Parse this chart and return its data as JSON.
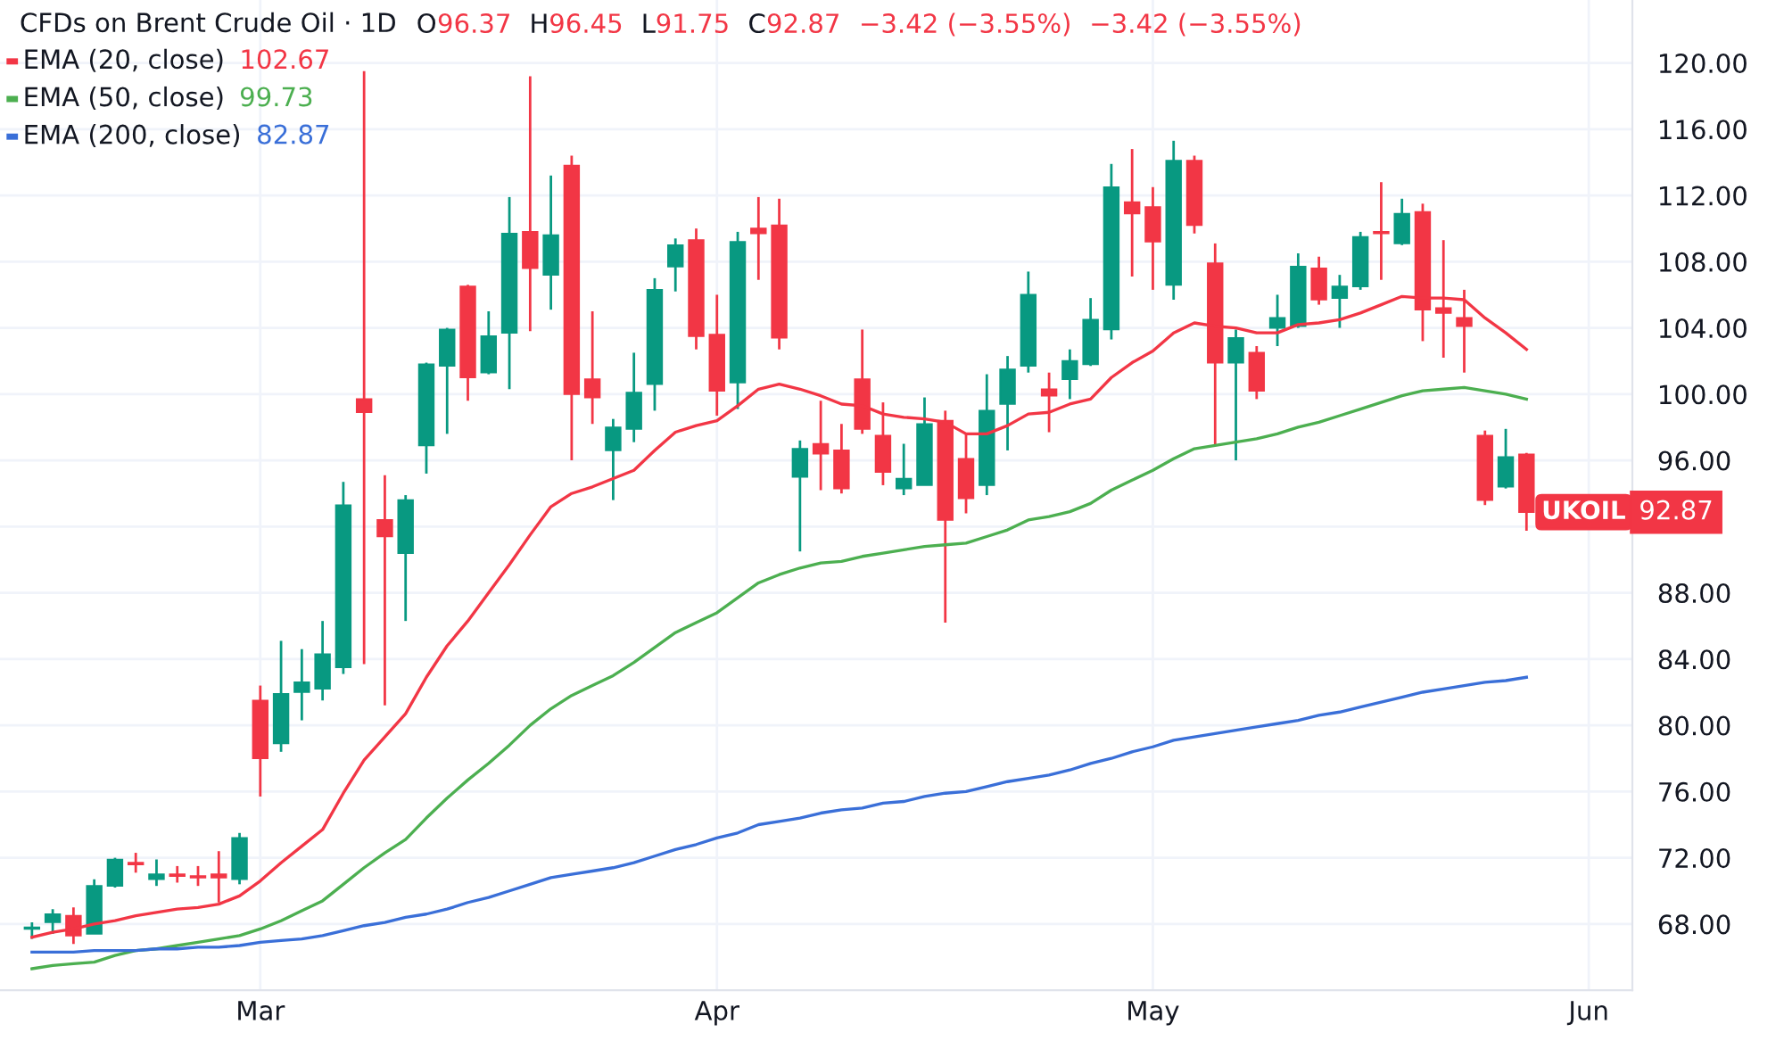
{
  "chart_data": {
    "type": "candlestick",
    "title": "CFDs on Brent Crude Oil · 1D",
    "annotations": [
      "O96.37",
      "H96.45",
      "L91.75",
      "C92.87",
      "−3.42 (−3.55%)",
      "−3.42 (−3.55%)",
      "102.67",
      "99.73",
      "82.87",
      "UKOIL",
      "92.87"
    ],
    "categories": [
      null,
      null,
      null,
      null,
      null,
      null,
      null,
      null,
      null,
      null,
      null,
      "Mar",
      null,
      null,
      null,
      null,
      null,
      null,
      null,
      null,
      null,
      null,
      null,
      null,
      null,
      null,
      null,
      null,
      null,
      null,
      null,
      null,
      null,
      "Apr",
      null,
      null,
      null,
      null,
      null,
      null,
      null,
      null,
      null,
      null,
      null,
      null,
      null,
      null,
      null,
      null,
      null,
      null,
      null,
      null,
      "May",
      null,
      null,
      null,
      null,
      null,
      null,
      null,
      null,
      null,
      null,
      null,
      null,
      null,
      null,
      null,
      null,
      null,
      null,
      null,
      null,
      "Jun"
    ],
    "ohlc": [
      [
        67.7,
        68.1,
        67.1,
        67.8
      ],
      [
        68.1,
        68.9,
        67.4,
        68.6
      ],
      [
        68.5,
        69.0,
        66.8,
        67.3
      ],
      [
        67.4,
        70.7,
        67.4,
        70.3
      ],
      [
        70.3,
        72.0,
        70.2,
        71.9
      ],
      [
        71.7,
        72.3,
        71.1,
        71.6
      ],
      [
        70.7,
        71.9,
        70.3,
        71.0
      ],
      [
        71.0,
        71.5,
        70.5,
        70.9
      ],
      [
        70.9,
        71.5,
        70.3,
        70.8
      ],
      [
        71.0,
        72.4,
        69.3,
        70.8
      ],
      [
        70.7,
        73.5,
        70.4,
        73.2
      ],
      [
        81.5,
        82.4,
        75.7,
        78.0
      ],
      [
        78.9,
        85.1,
        78.4,
        81.9
      ],
      [
        82.0,
        84.6,
        80.3,
        82.6
      ],
      [
        82.2,
        86.3,
        81.5,
        84.3
      ],
      [
        83.5,
        94.7,
        83.1,
        93.3
      ],
      [
        99.7,
        119.5,
        83.7,
        98.9
      ],
      [
        92.4,
        95.1,
        81.2,
        91.4
      ],
      [
        90.4,
        93.9,
        86.3,
        93.6
      ],
      [
        96.9,
        101.9,
        95.2,
        101.8
      ],
      [
        101.7,
        104.0,
        97.6,
        103.9
      ],
      [
        106.5,
        106.6,
        99.6,
        101.0
      ],
      [
        101.3,
        105.0,
        101.2,
        103.5
      ],
      [
        103.7,
        111.9,
        100.3,
        109.7
      ],
      [
        109.8,
        119.2,
        103.8,
        107.6
      ],
      [
        107.2,
        113.2,
        105.1,
        109.6
      ],
      [
        113.8,
        114.4,
        96.0,
        100.0
      ],
      [
        100.9,
        105.0,
        98.2,
        99.8
      ],
      [
        96.6,
        98.5,
        93.6,
        98.0
      ],
      [
        97.9,
        102.5,
        97.1,
        100.1
      ],
      [
        100.6,
        107.0,
        99.0,
        106.3
      ],
      [
        107.7,
        109.4,
        106.2,
        109.0
      ],
      [
        109.3,
        110.0,
        102.7,
        103.5
      ],
      [
        103.6,
        106.0,
        98.7,
        100.2
      ],
      [
        100.7,
        109.8,
        99.1,
        109.2
      ],
      [
        110.0,
        111.9,
        106.9,
        109.7
      ],
      [
        110.2,
        111.8,
        102.7,
        103.4
      ],
      [
        95.0,
        97.2,
        90.5,
        96.7
      ],
      [
        97.0,
        99.6,
        94.2,
        96.4
      ],
      [
        96.6,
        98.2,
        94.0,
        94.3
      ],
      [
        100.9,
        103.9,
        97.6,
        97.9
      ],
      [
        97.5,
        99.5,
        94.5,
        95.3
      ],
      [
        94.3,
        97.0,
        93.9,
        94.9
      ],
      [
        94.5,
        99.8,
        94.5,
        98.2
      ],
      [
        98.4,
        99.0,
        86.2,
        92.4
      ],
      [
        96.1,
        97.6,
        92.8,
        93.7
      ],
      [
        94.5,
        101.2,
        93.9,
        99.0
      ],
      [
        99.4,
        102.3,
        96.6,
        101.5
      ],
      [
        101.7,
        107.4,
        101.3,
        106.0
      ],
      [
        100.3,
        101.3,
        97.7,
        99.9
      ],
      [
        100.9,
        102.7,
        99.7,
        102.0
      ],
      [
        101.8,
        105.8,
        101.7,
        104.5
      ],
      [
        103.9,
        113.9,
        103.3,
        112.5
      ],
      [
        111.6,
        114.8,
        107.1,
        110.9
      ],
      [
        111.3,
        112.5,
        106.3,
        109.2
      ],
      [
        106.6,
        115.3,
        105.7,
        114.1
      ],
      [
        114.1,
        114.4,
        109.7,
        110.2
      ],
      [
        107.9,
        109.1,
        96.9,
        101.9
      ],
      [
        101.9,
        103.9,
        96.0,
        103.4
      ],
      [
        102.5,
        102.9,
        99.7,
        100.2
      ],
      [
        104.0,
        106.0,
        102.9,
        104.6
      ],
      [
        104.1,
        108.5,
        104.0,
        107.7
      ],
      [
        107.6,
        108.3,
        105.4,
        105.7
      ],
      [
        105.8,
        107.2,
        104.0,
        106.5
      ],
      [
        106.5,
        109.8,
        106.3,
        109.5
      ],
      [
        109.8,
        112.8,
        106.9,
        109.7
      ],
      [
        109.1,
        111.8,
        109.0,
        110.9
      ],
      [
        111.0,
        111.5,
        103.2,
        105.1
      ],
      [
        105.2,
        109.3,
        102.2,
        104.9
      ],
      [
        104.6,
        106.3,
        101.3,
        104.1
      ],
      [
        97.5,
        97.8,
        93.3,
        93.6
      ],
      [
        94.4,
        97.9,
        94.3,
        96.2
      ],
      [
        96.37,
        96.45,
        91.75,
        92.87
      ],
      null,
      null,
      null
    ],
    "series": [
      {
        "name": "EMA (20, close)",
        "type": "line",
        "color": "#f23645",
        "values": [
          67.2,
          67.5,
          67.7,
          68.0,
          68.2,
          68.5,
          68.7,
          68.9,
          69.0,
          69.2,
          69.7,
          70.6,
          71.7,
          72.7,
          73.7,
          75.9,
          77.9,
          79.3,
          80.7,
          82.9,
          84.8,
          86.3,
          88.0,
          89.7,
          91.5,
          93.2,
          94.0,
          94.4,
          94.9,
          95.4,
          96.6,
          97.7,
          98.1,
          98.4,
          99.3,
          100.3,
          100.6,
          100.3,
          99.9,
          99.4,
          99.3,
          98.8,
          98.6,
          98.5,
          98.3,
          97.6,
          97.6,
          98.1,
          98.8,
          98.9,
          99.4,
          99.7,
          101.0,
          101.9,
          102.6,
          103.7,
          104.3,
          104.1,
          104.0,
          103.7,
          103.7,
          104.2,
          104.3,
          104.5,
          104.9,
          105.4,
          105.9,
          105.8,
          105.8,
          105.7,
          104.6,
          103.7,
          102.7,
          null,
          null,
          null
        ]
      },
      {
        "name": "EMA (50, close)",
        "type": "line",
        "color": "#4caf50",
        "values": [
          65.3,
          65.5,
          65.6,
          65.7,
          66.1,
          66.4,
          66.5,
          66.7,
          66.9,
          67.1,
          67.3,
          67.7,
          68.2,
          68.8,
          69.4,
          70.4,
          71.4,
          72.3,
          73.1,
          74.4,
          75.6,
          76.7,
          77.7,
          78.8,
          80.0,
          81.0,
          81.8,
          82.4,
          83.0,
          83.8,
          84.7,
          85.6,
          86.2,
          86.8,
          87.7,
          88.6,
          89.1,
          89.5,
          89.8,
          89.9,
          90.2,
          90.4,
          90.6,
          90.8,
          90.9,
          91.0,
          91.4,
          91.8,
          92.4,
          92.6,
          92.9,
          93.4,
          94.2,
          94.8,
          95.4,
          96.1,
          96.7,
          96.9,
          97.1,
          97.3,
          97.6,
          98.0,
          98.3,
          98.7,
          99.1,
          99.5,
          99.9,
          100.2,
          100.3,
          100.4,
          100.2,
          100.0,
          99.7,
          null,
          null,
          null
        ]
      },
      {
        "name": "EMA (200, close)",
        "type": "line",
        "color": "#3a6fd8",
        "values": [
          66.3,
          66.3,
          66.3,
          66.4,
          66.4,
          66.4,
          66.5,
          66.5,
          66.6,
          66.6,
          66.7,
          66.9,
          67.0,
          67.1,
          67.3,
          67.6,
          67.9,
          68.1,
          68.4,
          68.6,
          68.9,
          69.3,
          69.6,
          70.0,
          70.4,
          70.8,
          71.0,
          71.2,
          71.4,
          71.7,
          72.1,
          72.5,
          72.8,
          73.2,
          73.5,
          74.0,
          74.2,
          74.4,
          74.7,
          74.9,
          75.0,
          75.3,
          75.4,
          75.7,
          75.9,
          76.0,
          76.3,
          76.6,
          76.8,
          77.0,
          77.3,
          77.7,
          78.0,
          78.4,
          78.7,
          79.1,
          79.3,
          79.5,
          79.7,
          79.9,
          80.1,
          80.3,
          80.6,
          80.8,
          81.1,
          81.4,
          81.7,
          82.0,
          82.2,
          82.4,
          82.6,
          82.7,
          82.9,
          null,
          null,
          null
        ]
      }
    ],
    "ylim": [
      64.0,
      123.8
    ],
    "yticks": [
      {
        "value": 68,
        "label": "68.00"
      },
      {
        "value": 72,
        "label": "72.00"
      },
      {
        "value": 76,
        "label": "76.00"
      },
      {
        "value": 80,
        "label": "80.00"
      },
      {
        "value": 84,
        "label": "84.00"
      },
      {
        "value": 88,
        "label": "88.00"
      },
      {
        "value": 92,
        "label": null
      },
      {
        "value": 96,
        "label": "96.00"
      },
      {
        "value": 100,
        "label": "100.00"
      },
      {
        "value": 104,
        "label": "104.00"
      },
      {
        "value": 108,
        "label": "108.00"
      },
      {
        "value": 112,
        "label": "112.00"
      },
      {
        "value": 116,
        "label": "116.00"
      },
      {
        "value": 120,
        "label": "120.00"
      }
    ],
    "grid": true,
    "legend": "top left"
  }
}
